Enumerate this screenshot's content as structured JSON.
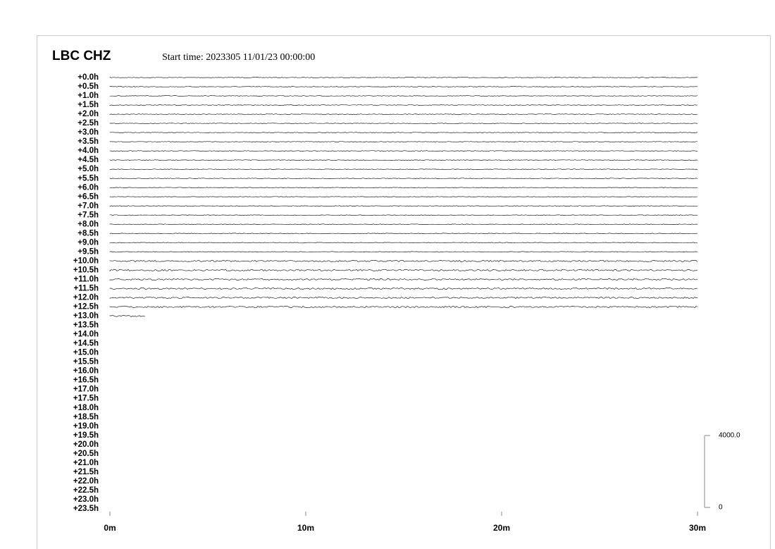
{
  "chart_data": {
    "type": "helicorder",
    "title": "LBC CHZ",
    "subtitle": "Start time: 2023305 11/01/23 00:00:00",
    "rows": [
      "+0.0h",
      "+0.5h",
      "+1.0h",
      "+1.5h",
      "+2.0h",
      "+2.5h",
      "+3.0h",
      "+3.5h",
      "+4.0h",
      "+4.5h",
      "+5.0h",
      "+5.5h",
      "+6.0h",
      "+6.5h",
      "+7.0h",
      "+7.5h",
      "+8.0h",
      "+8.5h",
      "+9.0h",
      "+9.5h",
      "+10.0h",
      "+10.5h",
      "+11.0h",
      "+11.5h",
      "+12.0h",
      "+12.5h",
      "+13.0h",
      "+13.5h",
      "+14.0h",
      "+14.5h",
      "+15.0h",
      "+15.5h",
      "+16.0h",
      "+16.5h",
      "+17.0h",
      "+17.5h",
      "+18.0h",
      "+18.5h",
      "+19.0h",
      "+19.5h",
      "+20.0h",
      "+20.5h",
      "+21.0h",
      "+21.5h",
      "+22.0h",
      "+22.5h",
      "+23.0h",
      "+23.5h"
    ],
    "xlim": [
      0,
      30
    ],
    "xticks": [
      {
        "value": 0,
        "label": "0m"
      },
      {
        "value": 10,
        "label": "10m"
      },
      {
        "value": 20,
        "label": "20m"
      },
      {
        "value": 30,
        "label": "30m"
      }
    ],
    "scale_ticks": [
      {
        "value": 4000,
        "label": "4000.0"
      },
      0
    ]
  }
}
